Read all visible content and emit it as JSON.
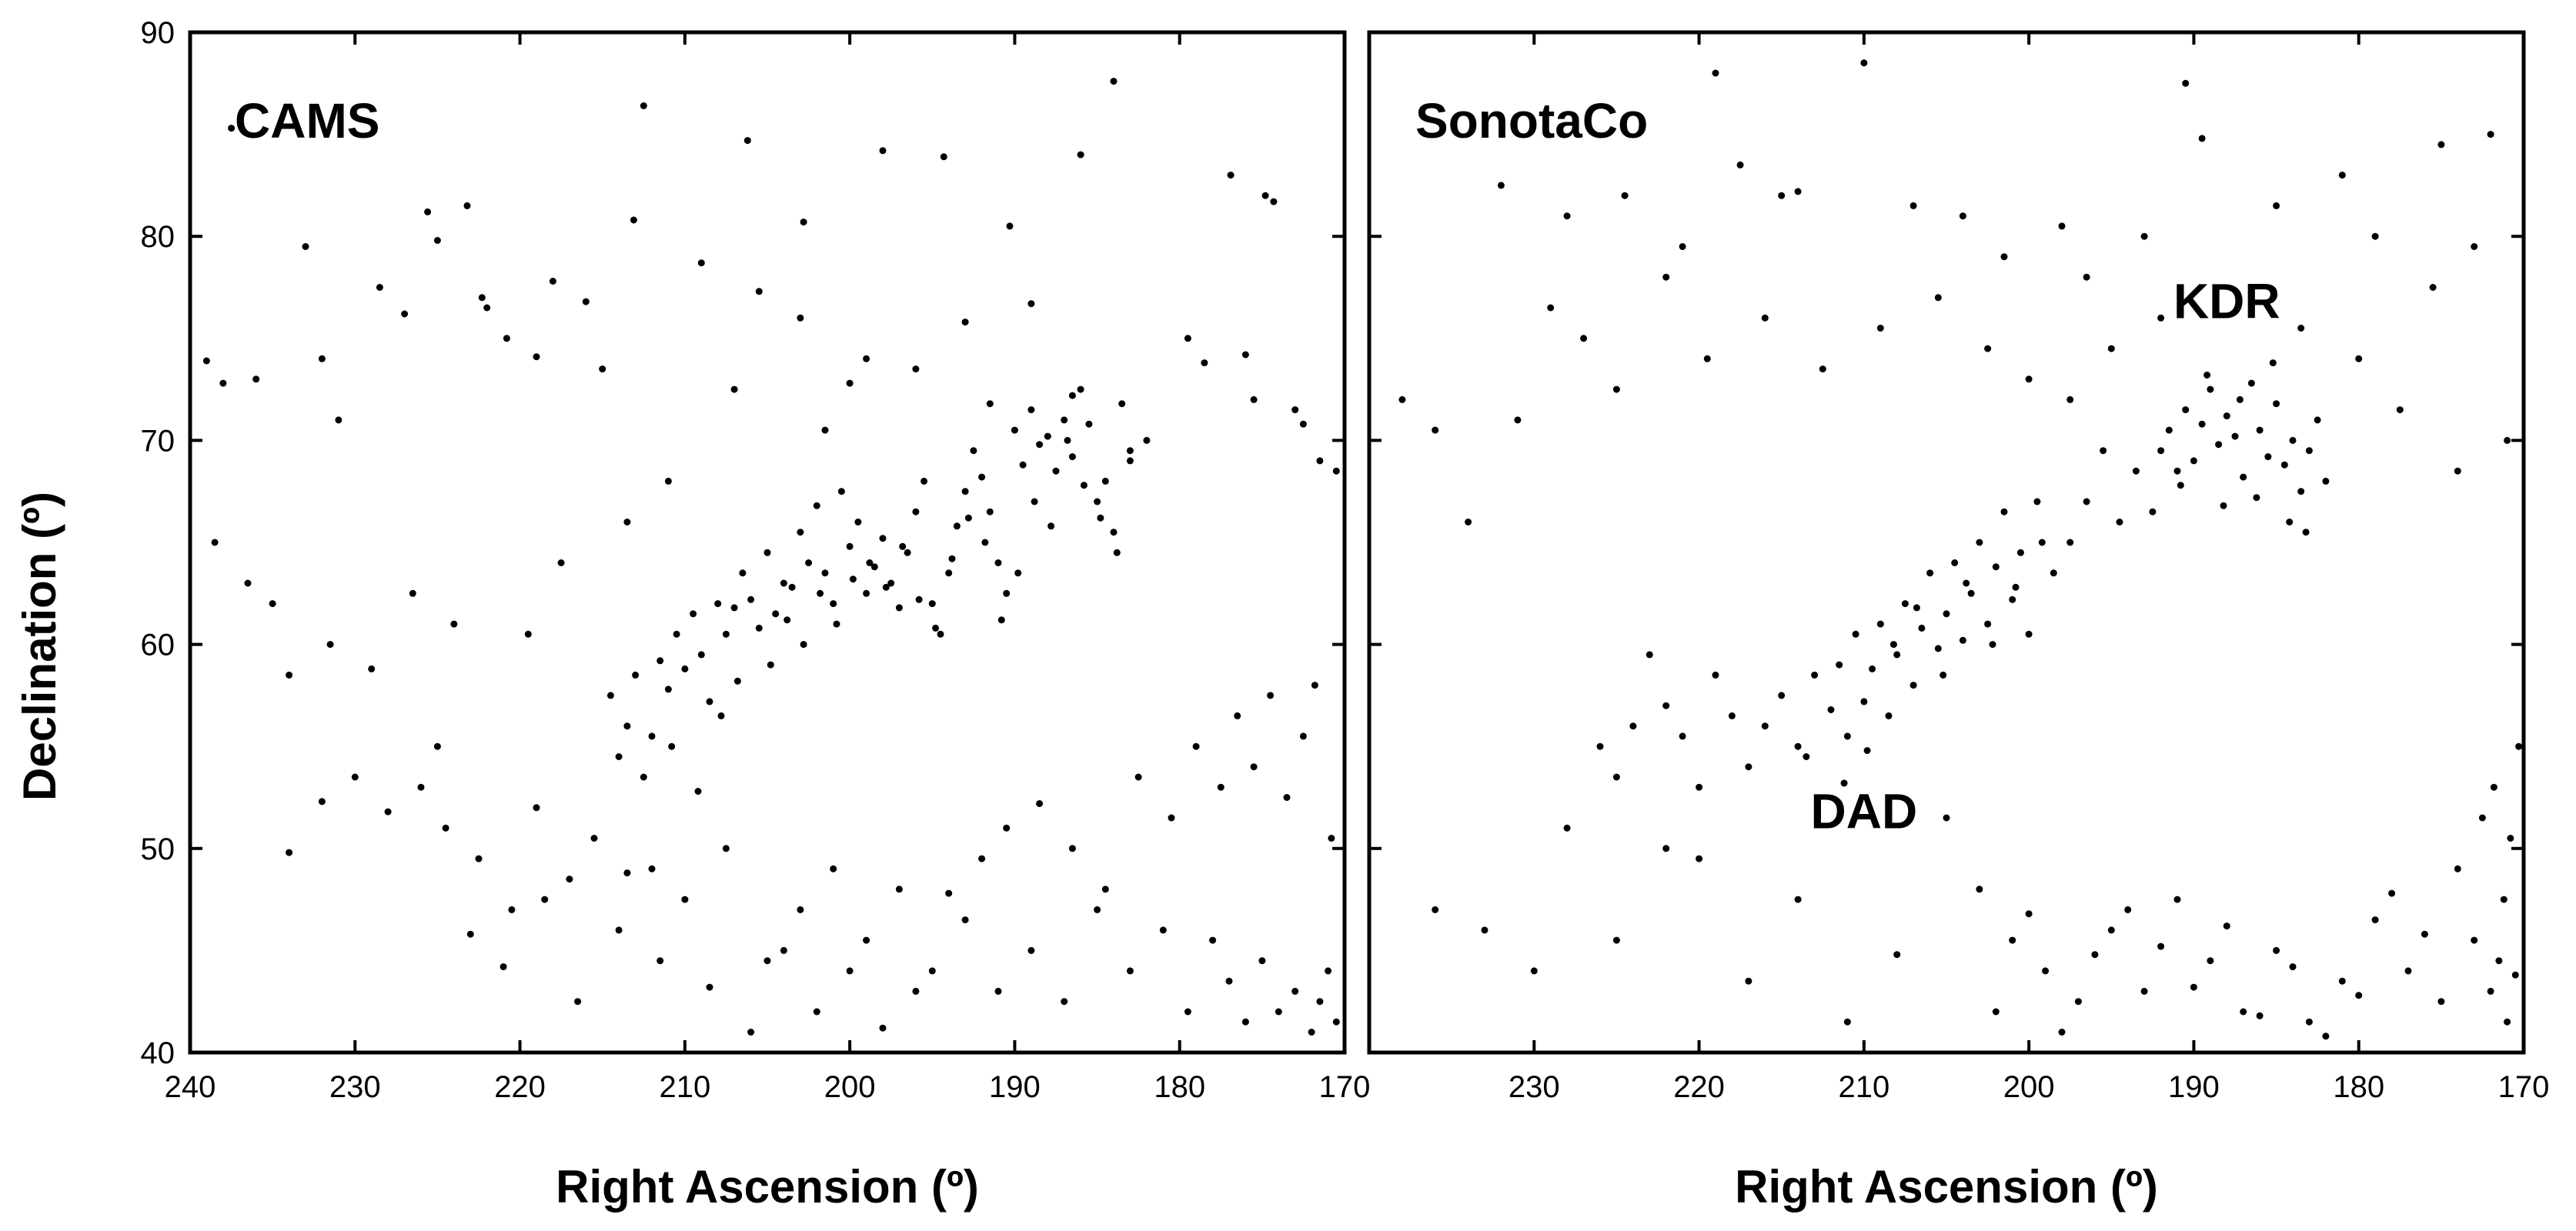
{
  "figure": {
    "y_axis_title": "Declination (º)",
    "background": "#ffffff",
    "point_color": "#000000"
  },
  "chart_data": [
    {
      "type": "scatter",
      "title": "CAMS",
      "xlabel": "Right Ascension (º)",
      "ylabel": "Declination (º)",
      "xlim": [
        240,
        170
      ],
      "ylim": [
        40,
        90
      ],
      "x_reversed": true,
      "xticks": [
        "240",
        "230",
        "220",
        "210",
        "200",
        "190",
        "180",
        "170"
      ],
      "yticks": [
        "40",
        "50",
        "60",
        "70",
        "80",
        "90"
      ],
      "grid": false,
      "annotations": [],
      "series": [
        {
          "x": [
            237.5,
            225.6,
            223.2,
            225.0,
            222.3,
            216.0,
            220.8,
            212.5,
            213.1,
            206.2,
            202.8,
            198.0,
            194.3,
            190.3,
            186.0,
            184.0,
            176.9,
            174.8,
            174.3,
            219.0,
            215.0,
            222.0,
            227.0,
            232.0,
            236.0,
            238.0,
            239.0,
            233.0,
            228.5,
            231.0,
            218.0,
            209.0,
            203.0,
            200.0,
            183.0,
            179.5,
            176.0,
            173.0,
            171.5,
            238.5,
            236.5,
            235.0,
            234.0,
            231.5,
            229.0,
            226.5,
            224.0,
            219.5,
            217.5,
            213.5,
            211.0,
            207.0,
            205.5,
            201.5,
            199.0,
            196.0,
            193.0,
            191.5,
            189.0,
            186.5,
            182.0,
            178.5,
            175.5,
            172.5,
            170.5
          ],
          "y": [
            85.3,
            81.2,
            81.5,
            79.8,
            77.0,
            76.8,
            75.0,
            86.4,
            80.8,
            84.7,
            80.7,
            84.2,
            83.9,
            80.5,
            84.0,
            87.6,
            83.0,
            82.0,
            81.7,
            74.1,
            73.5,
            76.5,
            76.2,
            74.0,
            73.0,
            72.8,
            73.9,
            79.5,
            77.5,
            71.0,
            77.8,
            78.7,
            76.0,
            72.8,
            69.5,
            75.0,
            74.2,
            71.5,
            69.0,
            65.0,
            63.0,
            62.0,
            58.5,
            60.0,
            58.8,
            62.5,
            61.0,
            60.5,
            64.0,
            66.0,
            68.0,
            72.5,
            77.3,
            70.5,
            74.0,
            73.5,
            75.8,
            71.8,
            76.7,
            72.2,
            70.0,
            73.8,
            72.0,
            70.8,
            68.5
          ]
        },
        {
          "x": [
            214.5,
            213.5,
            213.0,
            212.0,
            211.5,
            211.0,
            210.5,
            210.0,
            209.5,
            209.0,
            208.0,
            207.5,
            207.0,
            206.5,
            206.0,
            205.0,
            204.5,
            204.0,
            203.5,
            203.0,
            202.5,
            202.0,
            201.5,
            201.0,
            200.5,
            200.0,
            199.5,
            199.0,
            198.5,
            198.0,
            197.5,
            197.0,
            196.5,
            196.0,
            195.5,
            195.0,
            194.5,
            194.0,
            193.5,
            193.0,
            192.5,
            192.0,
            191.5,
            191.0,
            190.5,
            190.0,
            189.5,
            189.0,
            188.5,
            188.0,
            187.5,
            187.0,
            186.5,
            186.0,
            185.5,
            185.0,
            184.5,
            184.0,
            183.5,
            183.0,
            214.0,
            212.5,
            210.8,
            209.2,
            208.5,
            207.8,
            206.8,
            205.5,
            204.8,
            203.8,
            202.8,
            201.8,
            200.8,
            199.8,
            198.8,
            197.8,
            196.8,
            195.8,
            194.8,
            193.8,
            192.8,
            191.8,
            190.8,
            189.8,
            188.8,
            187.8,
            186.8,
            185.8,
            184.8,
            183.8
          ],
          "y": [
            57.5,
            56.0,
            58.5,
            55.5,
            59.2,
            57.8,
            60.5,
            58.8,
            61.5,
            59.5,
            62.0,
            60.5,
            61.8,
            63.5,
            62.2,
            64.5,
            61.5,
            63.0,
            62.8,
            65.5,
            64.0,
            66.8,
            63.5,
            62.0,
            67.5,
            64.8,
            66.0,
            62.5,
            63.8,
            65.2,
            63.0,
            61.8,
            64.5,
            66.5,
            68.0,
            62.0,
            60.5,
            63.5,
            65.8,
            67.5,
            69.5,
            68.2,
            66.5,
            64.0,
            62.5,
            70.5,
            68.8,
            71.5,
            69.8,
            70.2,
            68.5,
            71.0,
            69.2,
            72.5,
            70.8,
            67.0,
            68.0,
            65.5,
            71.8,
            69.0,
            54.5,
            53.5,
            55.0,
            52.8,
            57.2,
            56.5,
            58.2,
            60.8,
            59.0,
            61.2,
            60.0,
            62.5,
            61.0,
            63.2,
            64.0,
            62.8,
            64.8,
            62.2,
            60.8,
            64.2,
            66.2,
            65.0,
            61.2,
            63.5,
            67.0,
            65.8,
            70.0,
            67.8,
            66.2,
            64.5
          ]
        },
        {
          "x": [
            226.0,
            224.5,
            222.5,
            220.5,
            219.0,
            217.0,
            215.5,
            214.0,
            212.0,
            210.0,
            207.5,
            205.0,
            203.0,
            201.0,
            199.0,
            197.0,
            195.0,
            193.0,
            191.0,
            189.0,
            187.0,
            185.0,
            183.0,
            181.0,
            179.5,
            178.0,
            177.0,
            176.0,
            175.0,
            174.0,
            173.0,
            172.0,
            171.5,
            171.0,
            170.5,
            234.0,
            232.0,
            230.0,
            228.0,
            225.0,
            223.0,
            221.0,
            218.5,
            216.5,
            213.5,
            211.5,
            208.5,
            206.0,
            204.0,
            202.0,
            200.0,
            198.0,
            196.0,
            194.0,
            192.0,
            190.5,
            188.5,
            186.5,
            184.5,
            182.5,
            180.5,
            179.0,
            177.5,
            176.5,
            175.5,
            174.5,
            173.5,
            172.5,
            171.8,
            170.8
          ],
          "y": [
            53.0,
            51.0,
            49.5,
            47.0,
            52.0,
            48.5,
            50.5,
            46.0,
            49.0,
            47.5,
            50.0,
            44.5,
            47.0,
            49.0,
            45.5,
            48.0,
            44.0,
            46.5,
            43.0,
            45.0,
            42.5,
            47.0,
            44.0,
            46.0,
            42.0,
            45.5,
            43.5,
            41.5,
            44.5,
            42.0,
            43.0,
            41.0,
            42.5,
            44.0,
            41.5,
            49.8,
            52.3,
            53.5,
            51.8,
            55.0,
            45.8,
            44.2,
            47.5,
            42.5,
            48.8,
            44.5,
            43.2,
            41.0,
            45.0,
            42.0,
            44.0,
            41.2,
            43.0,
            47.8,
            49.5,
            51.0,
            52.2,
            50.0,
            48.0,
            53.5,
            51.5,
            55.0,
            53.0,
            56.5,
            54.0,
            57.5,
            52.5,
            55.5,
            58.0,
            50.5
          ]
        }
      ]
    },
    {
      "type": "scatter",
      "title": "SonotaCo",
      "xlabel": "Right Ascension (º)",
      "ylabel": "Declination (º)",
      "xlim": [
        240,
        170
      ],
      "ylim": [
        40,
        90
      ],
      "x_reversed": true,
      "xticks": [
        "230",
        "220",
        "210",
        "200",
        "190",
        "180",
        "170"
      ],
      "yticks": [],
      "grid": false,
      "annotations": [
        {
          "text": "KDR",
          "x": 188,
          "y": 76.0
        },
        {
          "text": "DAD",
          "x": 210,
          "y": 51.0
        }
      ],
      "series": [
        {
          "x": [
            219.0,
            210.0,
            190.5,
            189.5,
            181.0,
            175.0,
            172.0,
            217.5,
            214.0,
            204.0,
            198.0,
            232.0,
            228.0,
            224.5,
            221.0,
            215.0,
            207.0,
            201.5,
            196.5,
            193.0,
            185.0,
            179.0,
            175.5,
            173.0,
            238.0,
            236.0,
            234.0,
            231.0,
            229.0,
            227.0,
            225.0,
            222.0,
            219.5,
            216.0,
            212.5,
            209.0,
            205.5,
            202.5,
            200.0,
            197.5,
            195.0,
            192.0,
            183.5,
            180.0,
            177.5,
            174.0,
            171.0
          ],
          "y": [
            88.0,
            88.5,
            87.5,
            84.8,
            83.0,
            84.5,
            85.0,
            83.5,
            82.2,
            81.0,
            80.5,
            82.5,
            81.0,
            82.0,
            79.5,
            82.0,
            81.5,
            79.0,
            78.0,
            80.0,
            81.5,
            80.0,
            77.5,
            79.5,
            72.0,
            70.5,
            66.0,
            71.0,
            76.5,
            75.0,
            72.5,
            78.0,
            74.0,
            76.0,
            73.5,
            75.5,
            77.0,
            74.5,
            73.0,
            72.0,
            74.5,
            76.0,
            75.5,
            74.0,
            71.5,
            68.5,
            70.0
          ]
        },
        {
          "x": [
            192.0,
            191.5,
            191.0,
            190.5,
            190.0,
            189.5,
            189.0,
            188.5,
            188.0,
            187.5,
            187.0,
            186.5,
            186.0,
            185.5,
            185.0,
            184.5,
            184.0,
            183.5,
            183.0,
            182.5,
            182.0,
            192.5,
            190.8,
            189.2,
            188.2,
            187.2,
            186.2,
            185.2,
            184.2,
            183.2,
            193.5,
            194.5,
            195.5,
            196.5,
            197.5,
            198.5
          ],
          "y": [
            69.5,
            70.5,
            68.5,
            71.5,
            69.0,
            70.8,
            72.5,
            69.8,
            71.2,
            70.2,
            68.2,
            72.8,
            70.5,
            69.2,
            71.8,
            68.8,
            70.0,
            67.5,
            69.5,
            71.0,
            68.0,
            66.5,
            67.8,
            73.2,
            66.8,
            72.0,
            67.2,
            73.8,
            66.0,
            65.5,
            68.5,
            66.0,
            69.5,
            67.0,
            65.0,
            63.5
          ]
        },
        {
          "x": [
            216.0,
            215.0,
            214.0,
            213.0,
            212.0,
            211.5,
            211.0,
            210.5,
            210.0,
            209.5,
            209.0,
            208.5,
            208.0,
            207.5,
            207.0,
            206.5,
            206.0,
            205.5,
            205.0,
            204.5,
            204.0,
            203.5,
            203.0,
            202.5,
            202.0,
            201.5,
            201.0,
            200.5,
            200.0,
            199.5,
            217.0,
            218.0,
            219.0,
            220.0,
            221.0,
            222.0,
            223.0,
            224.0,
            225.0,
            226.0,
            213.5,
            211.2,
            209.8,
            208.2,
            206.8,
            205.2,
            203.8,
            202.2,
            200.8,
            199.2
          ],
          "y": [
            56.0,
            57.5,
            55.0,
            58.5,
            56.8,
            59.0,
            55.5,
            60.5,
            57.2,
            58.8,
            61.0,
            56.5,
            59.5,
            62.0,
            58.0,
            60.8,
            63.5,
            59.8,
            61.5,
            64.0,
            60.2,
            62.5,
            65.0,
            61.0,
            63.8,
            66.5,
            62.2,
            64.5,
            60.5,
            67.0,
            54.0,
            56.5,
            58.5,
            53.0,
            55.5,
            57.0,
            59.5,
            56.0,
            53.5,
            55.0,
            54.5,
            53.2,
            54.8,
            60.0,
            61.8,
            58.5,
            63.0,
            60.0,
            62.8,
            65.0
          ]
        },
        {
          "x": [
            203.0,
            201.0,
            199.0,
            197.0,
            195.0,
            193.0,
            191.0,
            189.0,
            187.0,
            185.0,
            183.0,
            181.0,
            179.0,
            177.0,
            175.0,
            173.0,
            172.0,
            171.5,
            171.0,
            170.5,
            202.0,
            200.0,
            198.0,
            196.0,
            194.0,
            192.0,
            190.0,
            188.0,
            186.0,
            184.0,
            182.0,
            180.0,
            178.0,
            176.0,
            174.0,
            172.5,
            171.8,
            171.2,
            170.8,
            170.3,
            220.0,
            217.0,
            214.0,
            211.0,
            208.0,
            205.0,
            228.0,
            225.0,
            222.0,
            236.0,
            233.0,
            230.0
          ],
          "y": [
            48.0,
            45.5,
            44.0,
            42.5,
            46.0,
            43.0,
            47.5,
            44.5,
            42.0,
            45.0,
            41.5,
            43.5,
            46.5,
            44.0,
            42.5,
            45.5,
            43.0,
            44.5,
            41.5,
            43.8,
            42.0,
            46.8,
            41.0,
            44.8,
            47.0,
            45.2,
            43.2,
            46.2,
            41.8,
            44.2,
            40.8,
            42.8,
            47.8,
            45.8,
            49.0,
            51.5,
            53.0,
            47.5,
            50.5,
            55.0,
            49.5,
            43.5,
            47.5,
            41.5,
            44.8,
            51.5,
            51.0,
            45.5,
            50.0,
            47.0,
            46.0,
            44.0
          ]
        }
      ]
    }
  ]
}
